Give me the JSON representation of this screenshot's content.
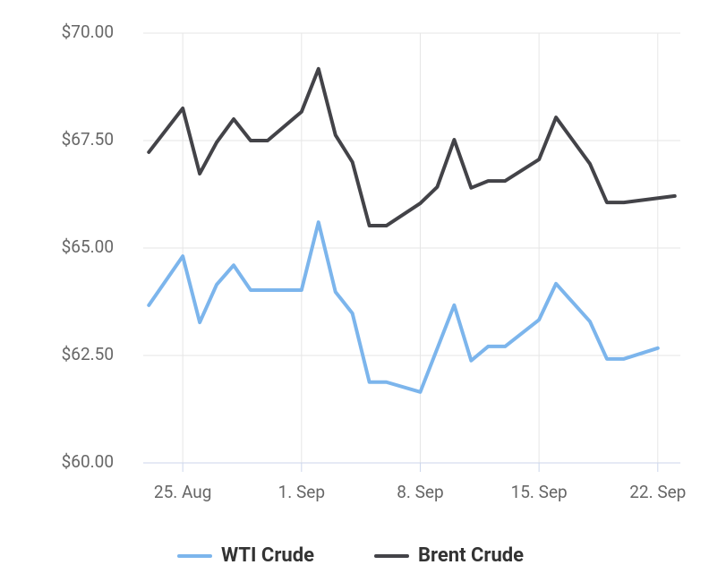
{
  "chart_data": {
    "type": "line",
    "series": [
      {
        "name": "WTI Crude",
        "color": "#7cb5ec",
        "x": [
          "23. Aug",
          "25. Aug",
          "26. Aug",
          "27. Aug",
          "28. Aug",
          "29. Aug",
          "30. Aug",
          "1. Sep",
          "2. Sep",
          "3. Sep",
          "4. Sep",
          "5. Sep",
          "6. Sep",
          "8. Sep",
          "10. Sep",
          "11. Sep",
          "12. Sep",
          "13. Sep",
          "15. Sep",
          "16. Sep",
          "17. Sep",
          "18. Sep",
          "19. Sep",
          "20. Sep",
          "22. Sep"
        ],
        "values": [
          63.67,
          64.81,
          63.27,
          64.15,
          64.6,
          64.02,
          64.02,
          64.02,
          65.6,
          63.98,
          63.48,
          61.88,
          61.88,
          61.65,
          63.67,
          62.38,
          62.71,
          62.71,
          63.33,
          64.17,
          63.73,
          63.29,
          62.42,
          62.42,
          62.67
        ]
      },
      {
        "name": "Brent Crude",
        "color": "#434348",
        "x": [
          "23. Aug",
          "25. Aug",
          "26. Aug",
          "27. Aug",
          "28. Aug",
          "29. Aug",
          "30. Aug",
          "1. Sep",
          "2. Sep",
          "3. Sep",
          "4. Sep",
          "5. Sep",
          "6. Sep",
          "8. Sep",
          "9. Sep",
          "10. Sep",
          "11. Sep",
          "12. Sep",
          "13. Sep",
          "15. Sep",
          "16. Sep",
          "17. Sep",
          "18. Sep",
          "19. Sep",
          "20. Sep",
          "23. Sep"
        ],
        "values": [
          67.23,
          68.25,
          66.73,
          67.46,
          68.0,
          67.5,
          67.5,
          68.17,
          69.17,
          67.63,
          67.0,
          65.52,
          65.52,
          66.04,
          66.42,
          67.52,
          66.4,
          66.56,
          66.56,
          67.06,
          68.04,
          67.5,
          66.96,
          66.06,
          66.06,
          66.21
        ]
      }
    ],
    "xticks": [
      "25. Aug",
      "1. Sep",
      "8. Sep",
      "15. Sep",
      "22. Sep"
    ],
    "ylim": [
      60,
      70
    ],
    "yticks": [
      {
        "value": 60,
        "label": "$60.00"
      },
      {
        "value": 62.5,
        "label": "$62.50"
      },
      {
        "value": 65,
        "label": "$65.00"
      },
      {
        "value": 67.5,
        "label": "$67.50"
      },
      {
        "value": 70,
        "label": "$70.00"
      }
    ],
    "grid": true,
    "legend": "bottom"
  }
}
